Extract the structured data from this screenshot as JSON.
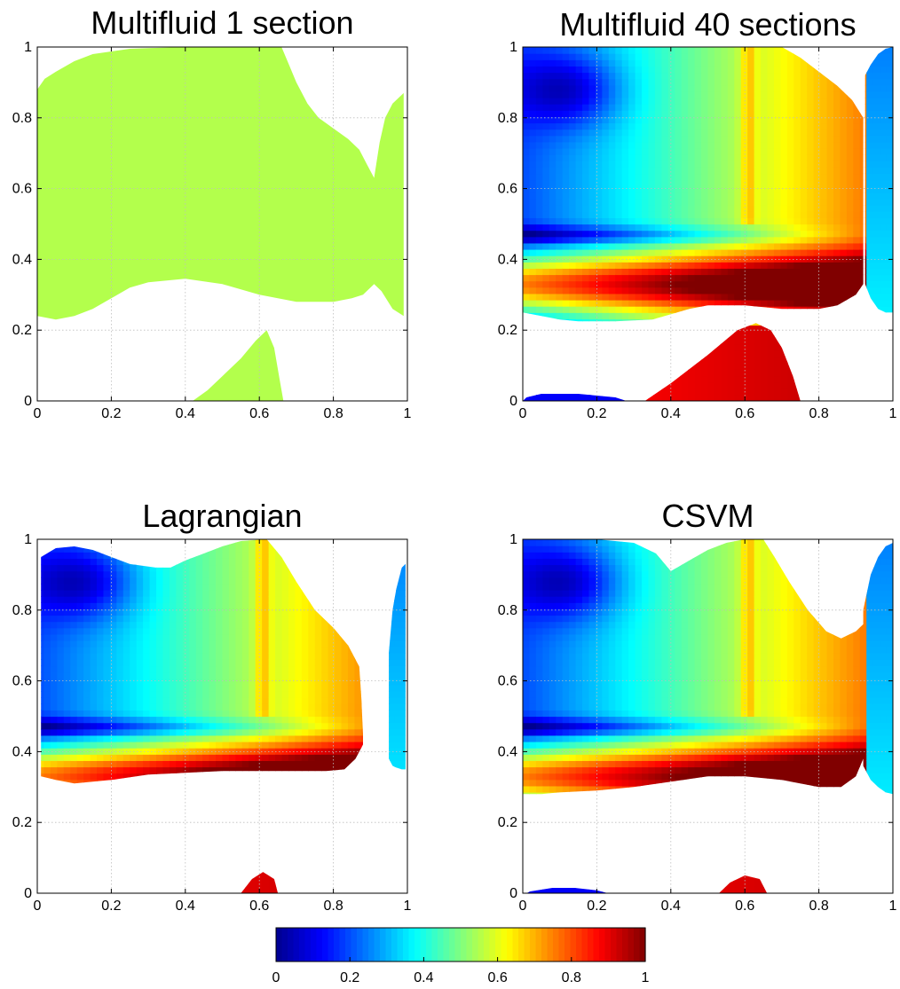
{
  "figure": {
    "colormap": "jet",
    "jet_stops": [
      "#00008f",
      "#0000ff",
      "#00ffff",
      "#ffff00",
      "#ff0000",
      "#800000"
    ]
  },
  "chart_data": [
    {
      "type": "heatmap",
      "title": "Multifluid 1 section",
      "xlim": [
        0,
        1
      ],
      "ylim": [
        0,
        1
      ],
      "xticks": [
        "0",
        "0.2",
        "0.4",
        "0.6",
        "0.8",
        "1"
      ],
      "yticks": [
        "0",
        "0.2",
        "0.4",
        "0.6",
        "0.8",
        "1"
      ],
      "grid": true,
      "field": "uniform",
      "uniform_value": 0.55,
      "regions": [
        {
          "name": "upper-region",
          "top": [
            [
              0,
              0.88
            ],
            [
              0.02,
              0.91
            ],
            [
              0.05,
              0.93
            ],
            [
              0.1,
              0.96
            ],
            [
              0.15,
              0.98
            ],
            [
              0.25,
              0.995
            ],
            [
              0.3,
              0.997
            ],
            [
              0.4,
              1.0
            ],
            [
              0.66,
              1.0
            ],
            [
              0.68,
              0.95
            ],
            [
              0.7,
              0.9
            ],
            [
              0.73,
              0.84
            ],
            [
              0.76,
              0.8
            ],
            [
              0.8,
              0.77
            ],
            [
              0.84,
              0.74
            ],
            [
              0.87,
              0.71
            ],
            [
              0.89,
              0.67
            ],
            [
              0.91,
              0.63
            ],
            [
              0.925,
              0.73
            ],
            [
              0.94,
              0.8
            ],
            [
              0.96,
              0.84
            ],
            [
              0.99,
              0.87
            ]
          ],
          "bottom": [
            [
              0,
              0.24
            ],
            [
              0.05,
              0.23
            ],
            [
              0.1,
              0.24
            ],
            [
              0.15,
              0.26
            ],
            [
              0.2,
              0.29
            ],
            [
              0.25,
              0.32
            ],
            [
              0.3,
              0.335
            ],
            [
              0.4,
              0.345
            ],
            [
              0.5,
              0.33
            ],
            [
              0.6,
              0.3
            ],
            [
              0.7,
              0.28
            ],
            [
              0.8,
              0.28
            ],
            [
              0.85,
              0.29
            ],
            [
              0.88,
              0.3
            ],
            [
              0.91,
              0.33
            ],
            [
              0.93,
              0.31
            ],
            [
              0.96,
              0.26
            ],
            [
              0.99,
              0.24
            ]
          ]
        },
        {
          "name": "lower-peak",
          "top": [
            [
              0.42,
              0.0
            ],
            [
              0.46,
              0.03
            ],
            [
              0.5,
              0.07
            ],
            [
              0.55,
              0.12
            ],
            [
              0.59,
              0.17
            ],
            [
              0.62,
              0.2
            ],
            [
              0.64,
              0.15
            ],
            [
              0.655,
              0.06
            ],
            [
              0.665,
              0.0
            ]
          ],
          "bottom": [
            [
              0.42,
              0.0
            ],
            [
              0.665,
              0.0
            ]
          ]
        }
      ]
    },
    {
      "type": "heatmap",
      "title": "Multifluid 40 sections",
      "xlim": [
        0,
        1
      ],
      "ylim": [
        0,
        1
      ],
      "xticks": [
        "0",
        "0.2",
        "0.4",
        "0.6",
        "0.8",
        "1"
      ],
      "yticks": [
        "0",
        "0.2",
        "0.4",
        "0.6",
        "0.8",
        "1"
      ],
      "grid": true,
      "field": "vortex",
      "regions": [
        {
          "name": "main-region",
          "top": [
            [
              0,
              1.0
            ],
            [
              0.6,
              1.0
            ],
            [
              0.7,
              1.0
            ],
            [
              0.75,
              0.97
            ],
            [
              0.8,
              0.93
            ],
            [
              0.85,
              0.89
            ],
            [
              0.89,
              0.85
            ],
            [
              0.92,
              0.8
            ]
          ],
          "bottom": [
            [
              0,
              0.25
            ],
            [
              0.05,
              0.24
            ],
            [
              0.1,
              0.23
            ],
            [
              0.15,
              0.225
            ],
            [
              0.25,
              0.225
            ],
            [
              0.35,
              0.23
            ],
            [
              0.45,
              0.26
            ],
            [
              0.5,
              0.27
            ],
            [
              0.6,
              0.27
            ],
            [
              0.7,
              0.26
            ],
            [
              0.8,
              0.26
            ],
            [
              0.85,
              0.27
            ],
            [
              0.9,
              0.3
            ],
            [
              0.92,
              0.33
            ]
          ]
        },
        {
          "name": "lower-peak",
          "top": [
            [
              0.33,
              0.0
            ],
            [
              0.4,
              0.05
            ],
            [
              0.5,
              0.13
            ],
            [
              0.58,
              0.2
            ],
            [
              0.63,
              0.22
            ],
            [
              0.67,
              0.2
            ],
            [
              0.7,
              0.15
            ],
            [
              0.73,
              0.07
            ],
            [
              0.75,
              0.0
            ]
          ],
          "bottom": [
            [
              0.33,
              0.0
            ],
            [
              0.75,
              0.0
            ]
          ]
        },
        {
          "name": "bottom-left-sliver",
          "top": [
            [
              0.01,
              0.01
            ],
            [
              0.05,
              0.02
            ],
            [
              0.15,
              0.02
            ],
            [
              0.25,
              0.01
            ],
            [
              0.28,
              0.0
            ]
          ],
          "bottom": [
            [
              0.0,
              0.0
            ],
            [
              0.28,
              0.0
            ]
          ]
        },
        {
          "name": "right-strip",
          "top": [
            [
              0.925,
              0.92
            ],
            [
              0.94,
              0.95
            ],
            [
              0.96,
              0.98
            ],
            [
              0.98,
              0.995
            ],
            [
              1.0,
              1.0
            ]
          ],
          "bottom": [
            [
              0.925,
              0.33
            ],
            [
              0.94,
              0.29
            ],
            [
              0.96,
              0.26
            ],
            [
              0.98,
              0.25
            ],
            [
              1.0,
              0.25
            ]
          ]
        }
      ]
    },
    {
      "type": "heatmap",
      "title": "Lagrangian",
      "xlim": [
        0,
        1
      ],
      "ylim": [
        0,
        1
      ],
      "xticks": [
        "0",
        "0.2",
        "0.4",
        "0.6",
        "0.8",
        "1"
      ],
      "yticks": [
        "0",
        "0.2",
        "0.4",
        "0.6",
        "0.8",
        "1"
      ],
      "grid": true,
      "field": "vortex",
      "regions": [
        {
          "name": "main-region",
          "top": [
            [
              0.01,
              0.95
            ],
            [
              0.05,
              0.975
            ],
            [
              0.1,
              0.98
            ],
            [
              0.15,
              0.97
            ],
            [
              0.2,
              0.95
            ],
            [
              0.25,
              0.93
            ],
            [
              0.32,
              0.92
            ],
            [
              0.36,
              0.92
            ],
            [
              0.4,
              0.94
            ],
            [
              0.45,
              0.96
            ],
            [
              0.5,
              0.98
            ],
            [
              0.55,
              0.995
            ],
            [
              0.62,
              1.0
            ],
            [
              0.66,
              0.95
            ],
            [
              0.7,
              0.88
            ],
            [
              0.75,
              0.8
            ],
            [
              0.8,
              0.75
            ],
            [
              0.84,
              0.7
            ],
            [
              0.87,
              0.64
            ],
            [
              0.875,
              0.56
            ],
            [
              0.88,
              0.45
            ],
            [
              0.88,
              0.42
            ]
          ],
          "bottom": [
            [
              0.01,
              0.33
            ],
            [
              0.05,
              0.32
            ],
            [
              0.1,
              0.31
            ],
            [
              0.2,
              0.32
            ],
            [
              0.3,
              0.335
            ],
            [
              0.5,
              0.345
            ],
            [
              0.7,
              0.345
            ],
            [
              0.78,
              0.345
            ],
            [
              0.83,
              0.35
            ],
            [
              0.86,
              0.38
            ],
            [
              0.88,
              0.42
            ]
          ]
        },
        {
          "name": "lower-peak",
          "top": [
            [
              0.55,
              0.0
            ],
            [
              0.58,
              0.04
            ],
            [
              0.61,
              0.06
            ],
            [
              0.64,
              0.04
            ],
            [
              0.65,
              0.0
            ]
          ],
          "bottom": [
            [
              0.55,
              0.0
            ],
            [
              0.65,
              0.0
            ]
          ]
        },
        {
          "name": "right-strip",
          "top": [
            [
              0.95,
              0.68
            ],
            [
              0.96,
              0.8
            ],
            [
              0.97,
              0.86
            ],
            [
              0.985,
              0.92
            ],
            [
              0.995,
              0.93
            ]
          ],
          "bottom": [
            [
              0.95,
              0.38
            ],
            [
              0.96,
              0.36
            ],
            [
              0.97,
              0.355
            ],
            [
              0.985,
              0.35
            ],
            [
              0.995,
              0.35
            ]
          ]
        }
      ]
    },
    {
      "type": "heatmap",
      "title": "CSVM",
      "xlim": [
        0,
        1
      ],
      "ylim": [
        0,
        1
      ],
      "xticks": [
        "0",
        "0.2",
        "0.4",
        "0.6",
        "0.8",
        "1"
      ],
      "yticks": [
        "0",
        "0.2",
        "0.4",
        "0.6",
        "0.8",
        "1"
      ],
      "grid": true,
      "field": "vortex",
      "regions": [
        {
          "name": "main-region",
          "top": [
            [
              0,
              1.0
            ],
            [
              0.2,
              1.0
            ],
            [
              0.3,
              0.99
            ],
            [
              0.36,
              0.96
            ],
            [
              0.4,
              0.91
            ],
            [
              0.45,
              0.94
            ],
            [
              0.5,
              0.97
            ],
            [
              0.55,
              0.99
            ],
            [
              0.6,
              1.0
            ],
            [
              0.65,
              1.0
            ],
            [
              0.68,
              0.95
            ],
            [
              0.72,
              0.88
            ],
            [
              0.77,
              0.8
            ],
            [
              0.82,
              0.74
            ],
            [
              0.86,
              0.72
            ],
            [
              0.9,
              0.74
            ],
            [
              0.92,
              0.76
            ]
          ],
          "bottom": [
            [
              0,
              0.28
            ],
            [
              0.05,
              0.28
            ],
            [
              0.1,
              0.285
            ],
            [
              0.2,
              0.29
            ],
            [
              0.3,
              0.3
            ],
            [
              0.4,
              0.315
            ],
            [
              0.5,
              0.33
            ],
            [
              0.6,
              0.33
            ],
            [
              0.7,
              0.32
            ],
            [
              0.8,
              0.3
            ],
            [
              0.86,
              0.3
            ],
            [
              0.9,
              0.33
            ],
            [
              0.92,
              0.38
            ]
          ]
        },
        {
          "name": "lower-peak",
          "top": [
            [
              0.53,
              0.0
            ],
            [
              0.56,
              0.03
            ],
            [
              0.6,
              0.05
            ],
            [
              0.64,
              0.04
            ],
            [
              0.66,
              0.0
            ]
          ],
          "bottom": [
            [
              0.53,
              0.0
            ],
            [
              0.66,
              0.0
            ]
          ]
        },
        {
          "name": "bottom-left-sliver",
          "top": [
            [
              0.02,
              0.005
            ],
            [
              0.08,
              0.015
            ],
            [
              0.14,
              0.015
            ],
            [
              0.2,
              0.008
            ],
            [
              0.23,
              0.0
            ]
          ],
          "bottom": [
            [
              0.01,
              0.0
            ],
            [
              0.23,
              0.0
            ]
          ]
        },
        {
          "name": "right-strip",
          "top": [
            [
              0.92,
              0.8
            ],
            [
              0.94,
              0.9
            ],
            [
              0.96,
              0.95
            ],
            [
              0.98,
              0.98
            ],
            [
              1.0,
              0.99
            ]
          ],
          "bottom": [
            [
              0.92,
              0.36
            ],
            [
              0.94,
              0.32
            ],
            [
              0.96,
              0.3
            ],
            [
              0.98,
              0.285
            ],
            [
              1.0,
              0.28
            ]
          ]
        }
      ]
    }
  ],
  "colorbar": {
    "range": [
      0,
      1
    ],
    "ticks": [
      "0",
      "0.2",
      "0.4",
      "0.6",
      "0.8",
      "1"
    ],
    "levels": 64
  }
}
